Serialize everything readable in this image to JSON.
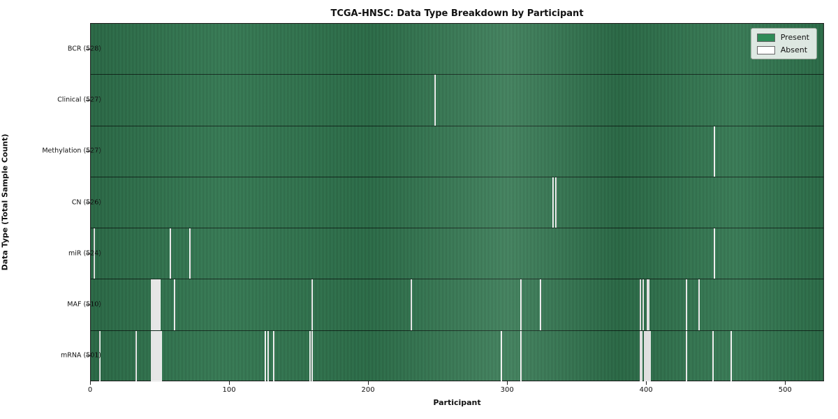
{
  "chart_data": {
    "type": "heatmap",
    "title": "TCGA-HNSC: Data Type Breakdown by Participant",
    "xlabel": "Participant",
    "ylabel": "Data Type (Total Sample Count)",
    "n_participants": 528,
    "x_ticks": [
      0,
      100,
      200,
      300,
      400,
      500
    ],
    "legend": [
      {
        "label": "Present",
        "color": "#2e8b57"
      },
      {
        "label": "Absent",
        "color": "#ffffff"
      }
    ],
    "colors": {
      "present_light": "#3e8e62",
      "present_dark": "#225839",
      "absent": "#f2f2f2"
    },
    "rows": [
      {
        "label": "BCR (528)",
        "name": "BCR",
        "total": 528,
        "absent": []
      },
      {
        "label": "Clinical (527)",
        "name": "Clinical",
        "total": 527,
        "absent": [
          247
        ]
      },
      {
        "label": "Methylation (527)",
        "name": "Methylation",
        "total": 527,
        "absent": [
          448
        ]
      },
      {
        "label": "CN (526)",
        "name": "CN",
        "total": 526,
        "absent": [
          332,
          334
        ]
      },
      {
        "label": "miR (524)",
        "name": "miR",
        "total": 524,
        "absent": [
          2,
          57,
          71,
          448
        ]
      },
      {
        "label": "MAF (510)",
        "name": "MAF",
        "total": 510,
        "absent": [
          43,
          44,
          45,
          46,
          47,
          48,
          49,
          60,
          159,
          230,
          309,
          323,
          395,
          397,
          400,
          401,
          428,
          437
        ]
      },
      {
        "label": "mRNA (501)",
        "name": "mRNA",
        "total": 501,
        "absent": [
          6,
          32,
          43,
          44,
          45,
          46,
          47,
          48,
          49,
          50,
          125,
          127,
          131,
          157,
          159,
          295,
          309,
          395,
          396,
          398,
          399,
          400,
          401,
          402,
          428,
          447,
          460
        ]
      }
    ]
  }
}
